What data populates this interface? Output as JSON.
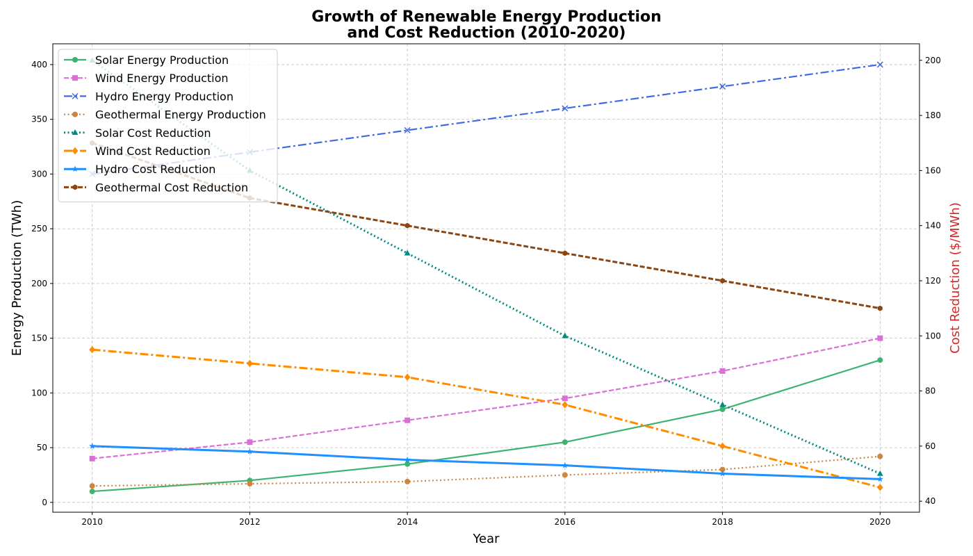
{
  "chart_data": {
    "type": "line",
    "title": "Growth of Renewable Energy Production\nand Cost Reduction (2010-2020)",
    "xlabel": "Year",
    "ylabel_left": "Energy Production (TWh)",
    "ylabel_right": "Cost Reduction ($/MWh)",
    "ylabel_right_color": "#d62728",
    "x": [
      2010,
      2012,
      2014,
      2016,
      2018,
      2020
    ],
    "x_ticks": [
      2010,
      2012,
      2014,
      2016,
      2018,
      2020
    ],
    "xlim": [
      2009.5,
      2020.5
    ],
    "ylim_left": [
      -9,
      419
    ],
    "ylim_right": [
      36,
      206
    ],
    "y_ticks_left": [
      0,
      50,
      100,
      150,
      200,
      250,
      300,
      350,
      400
    ],
    "y_ticks_right": [
      40,
      60,
      80,
      100,
      120,
      140,
      160,
      180,
      200
    ],
    "grid": true,
    "legend_position": "upper-left",
    "series": [
      {
        "name": "Solar Energy Production",
        "axis": "left",
        "values": [
          10,
          20,
          35,
          55,
          85,
          130
        ],
        "color": "#3cb371",
        "dash": "solid",
        "marker": "circle"
      },
      {
        "name": "Wind Energy Production",
        "axis": "left",
        "values": [
          40,
          55,
          75,
          95,
          120,
          150
        ],
        "color": "#da70d6",
        "dash": "dashed",
        "marker": "square"
      },
      {
        "name": "Hydro Energy Production",
        "axis": "left",
        "values": [
          300,
          320,
          340,
          360,
          380,
          400
        ],
        "color": "#4169e1",
        "dash": "dashdot",
        "marker": "x"
      },
      {
        "name": "Geothermal Energy Production",
        "axis": "left",
        "values": [
          15,
          17,
          19,
          25,
          30,
          42
        ],
        "color": "#cd853f",
        "dash": "dotted",
        "marker": "circle"
      },
      {
        "name": "Solar Cost Reduction",
        "axis": "right",
        "values": [
          200,
          160,
          130,
          100,
          75,
          50
        ],
        "color": "#008b80",
        "dash": "dotted",
        "marker": "triangle"
      },
      {
        "name": "Wind Cost Reduction",
        "axis": "right",
        "values": [
          95,
          90,
          85,
          75,
          60,
          45
        ],
        "color": "#ff8c00",
        "dash": "dashdot",
        "marker": "diamond"
      },
      {
        "name": "Hydro Cost Reduction",
        "axis": "right",
        "values": [
          60,
          58,
          55,
          53,
          50,
          48
        ],
        "color": "#1e90ff",
        "dash": "solid",
        "marker": "star"
      },
      {
        "name": "Geothermal Cost Reduction",
        "axis": "right",
        "values": [
          170,
          150,
          140,
          130,
          120,
          110
        ],
        "color": "#8b4513",
        "dash": "dashed",
        "marker": "hexagon"
      }
    ]
  }
}
